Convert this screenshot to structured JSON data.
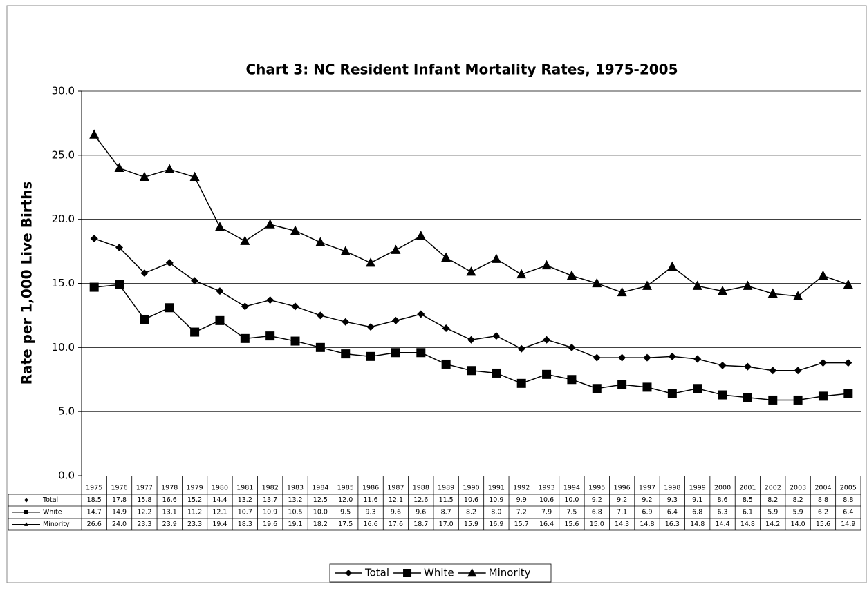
{
  "chart_data": {
    "type": "line",
    "title": "Chart 3: NC Resident Infant Mortality Rates, 1975-2005",
    "y_label": "Rate per 1,000 Live Births",
    "categories": [
      "1975",
      "1976",
      "1977",
      "1978",
      "1979",
      "1980",
      "1981",
      "1982",
      "1983",
      "1984",
      "1985",
      "1986",
      "1987",
      "1988",
      "1989",
      "1990",
      "1991",
      "1992",
      "1993",
      "1994",
      "1995",
      "1996",
      "1997",
      "1998",
      "1999",
      "2000",
      "2001",
      "2002",
      "2003",
      "2004",
      "2005"
    ],
    "series": [
      {
        "name": "Total",
        "color": "#000000",
        "marker": "diamond",
        "values": [
          18.5,
          17.8,
          15.8,
          16.6,
          15.2,
          14.4,
          13.2,
          13.7,
          13.2,
          12.5,
          12.0,
          11.6,
          12.1,
          12.6,
          11.5,
          10.6,
          10.9,
          9.9,
          10.6,
          10.0,
          9.2,
          9.2,
          9.2,
          9.3,
          9.1,
          8.6,
          8.5,
          8.2,
          8.2,
          8.8,
          8.8
        ],
        "value_labels": [
          "18.5",
          "17.8",
          "15.8",
          "16.6",
          "15.2",
          "14.4",
          "13.2",
          "13.7",
          "13.2",
          "12.5",
          "12.0",
          "11.6",
          "12.1",
          "12.6",
          "11.5",
          "10.6",
          "10.9",
          "9.9",
          "10.6",
          "10.0",
          "9.2",
          "9.2",
          "9.2",
          "9.3",
          "9.1",
          "8.6",
          "8.5",
          "8.2",
          "8.2",
          "8.8",
          "8.8"
        ]
      },
      {
        "name": "White",
        "color": "#000000",
        "marker": "square",
        "values": [
          14.7,
          14.9,
          12.2,
          13.1,
          11.2,
          12.1,
          10.7,
          10.9,
          10.5,
          10.0,
          9.5,
          9.3,
          9.6,
          9.6,
          8.7,
          8.2,
          8.0,
          7.2,
          7.9,
          7.5,
          6.8,
          7.1,
          6.9,
          6.4,
          6.8,
          6.3,
          6.1,
          5.9,
          5.9,
          6.2,
          6.4
        ],
        "value_labels": [
          "14.7",
          "14.9",
          "12.2",
          "13.1",
          "11.2",
          "12.1",
          "10.7",
          "10.9",
          "10.5",
          "10.0",
          "9.5",
          "9.3",
          "9.6",
          "9.6",
          "8.7",
          "8.2",
          "8.0",
          "7.2",
          "7.9",
          "7.5",
          "6.8",
          "7.1",
          "6.9",
          "6.4",
          "6.8",
          "6.3",
          "6.1",
          "5.9",
          "5.9",
          "6.2",
          "6.4"
        ]
      },
      {
        "name": "Minority",
        "color": "#000000",
        "marker": "triangle",
        "values": [
          26.6,
          24.0,
          23.3,
          23.9,
          23.3,
          19.4,
          18.3,
          19.6,
          19.1,
          18.2,
          17.5,
          16.6,
          17.6,
          18.7,
          17.0,
          15.9,
          16.9,
          15.7,
          16.4,
          15.6,
          15.0,
          14.3,
          14.8,
          16.3,
          14.8,
          14.4,
          14.8,
          14.2,
          14.0,
          15.6,
          14.9
        ],
        "value_labels": [
          "26.6",
          "24.0",
          "23.3",
          "23.9",
          "23.3",
          "19.4",
          "18.3",
          "19.6",
          "19.1",
          "18.2",
          "17.5",
          "16.6",
          "17.6",
          "18.7",
          "17.0",
          "15.9",
          "16.9",
          "15.7",
          "16.4",
          "15.6",
          "15.0",
          "14.3",
          "14.8",
          "16.3",
          "14.8",
          "14.4",
          "14.8",
          "14.2",
          "14.0",
          "15.6",
          "14.9"
        ]
      }
    ],
    "ylim": [
      0,
      30
    ],
    "yticks": [
      {
        "value": 0,
        "label": "0.0"
      },
      {
        "value": 5,
        "label": "5.0"
      },
      {
        "value": 10,
        "label": "10.0"
      },
      {
        "value": 15,
        "label": "15.0"
      },
      {
        "value": 20,
        "label": "20.0"
      },
      {
        "value": 25,
        "label": "25.0"
      },
      {
        "value": 30,
        "label": "30.0"
      }
    ],
    "grid": true,
    "legend": "bottom",
    "data_table": true
  }
}
